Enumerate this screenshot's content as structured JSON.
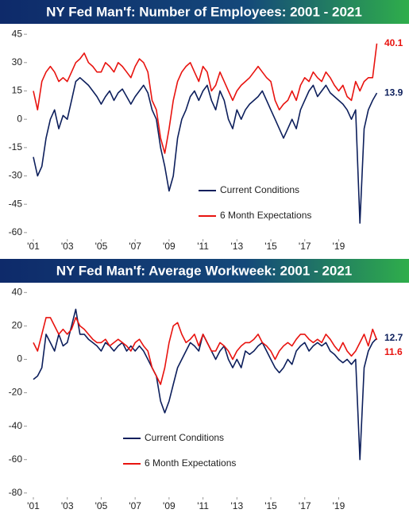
{
  "chart_data": [
    {
      "type": "line",
      "title": "NY Fed Man'f: Number of Employees: 2001 - 2021",
      "x": [
        2001,
        2001.25,
        2001.5,
        2001.75,
        2002,
        2002.25,
        2002.5,
        2002.75,
        2003,
        2003.25,
        2003.5,
        2003.75,
        2004,
        2004.25,
        2004.5,
        2004.75,
        2005,
        2005.25,
        2005.5,
        2005.75,
        2006,
        2006.25,
        2006.5,
        2006.75,
        2007,
        2007.25,
        2007.5,
        2007.75,
        2008,
        2008.25,
        2008.5,
        2008.75,
        2009,
        2009.25,
        2009.5,
        2009.75,
        2010,
        2010.25,
        2010.5,
        2010.75,
        2011,
        2011.25,
        2011.5,
        2011.75,
        2012,
        2012.25,
        2012.5,
        2012.75,
        2013,
        2013.25,
        2013.5,
        2013.75,
        2014,
        2014.25,
        2014.5,
        2014.75,
        2015,
        2015.25,
        2015.5,
        2015.75,
        2016,
        2016.25,
        2016.5,
        2016.75,
        2017,
        2017.25,
        2017.5,
        2017.75,
        2018,
        2018.25,
        2018.5,
        2018.75,
        2019,
        2019.25,
        2019.5,
        2019.75,
        2020,
        2020.25,
        2020.5,
        2020.75,
        2021,
        2021.25
      ],
      "series": [
        {
          "name": "Current Conditions",
          "color": "#0d1f5c",
          "values": [
            -20,
            -30,
            -25,
            -10,
            0,
            5,
            -5,
            2,
            0,
            10,
            20,
            22,
            20,
            18,
            15,
            12,
            8,
            12,
            15,
            10,
            14,
            16,
            12,
            8,
            12,
            15,
            18,
            14,
            5,
            0,
            -15,
            -25,
            -38,
            -30,
            -10,
            0,
            5,
            12,
            15,
            10,
            15,
            18,
            10,
            5,
            15,
            10,
            0,
            -5,
            5,
            0,
            5,
            8,
            10,
            12,
            15,
            10,
            5,
            0,
            -5,
            -10,
            -5,
            0,
            -5,
            5,
            10,
            15,
            18,
            12,
            15,
            18,
            14,
            12,
            10,
            8,
            5,
            0,
            5,
            -55,
            -5,
            5,
            10,
            13.9
          ]
        },
        {
          "name": "6 Month Expectations",
          "color": "#e8130f",
          "values": [
            15,
            5,
            20,
            25,
            28,
            25,
            20,
            22,
            20,
            25,
            30,
            32,
            35,
            30,
            28,
            25,
            25,
            30,
            28,
            25,
            30,
            28,
            25,
            22,
            28,
            32,
            30,
            25,
            10,
            5,
            -10,
            -18,
            -5,
            10,
            20,
            25,
            28,
            30,
            25,
            20,
            28,
            25,
            15,
            18,
            25,
            20,
            15,
            10,
            15,
            18,
            20,
            22,
            25,
            28,
            25,
            22,
            20,
            10,
            5,
            8,
            10,
            15,
            10,
            18,
            22,
            20,
            25,
            22,
            20,
            25,
            22,
            18,
            15,
            18,
            12,
            10,
            20,
            15,
            20,
            22,
            22,
            40.1
          ]
        }
      ],
      "xlim": [
        2001,
        2021.6
      ],
      "xticks": [
        {
          "value": 2001,
          "label": "'01"
        },
        {
          "value": 2003,
          "label": "'03"
        },
        {
          "value": 2005,
          "label": "'05"
        },
        {
          "value": 2007,
          "label": "'07"
        },
        {
          "value": 2009,
          "label": "'09"
        },
        {
          "value": 2011,
          "label": "'11"
        },
        {
          "value": 2013,
          "label": "'13"
        },
        {
          "value": 2015,
          "label": "'15"
        },
        {
          "value": 2017,
          "label": "'17"
        },
        {
          "value": 2019,
          "label": "'19"
        }
      ],
      "ylim": [
        -63,
        48
      ],
      "yticks": [
        45,
        30,
        15,
        0,
        -15,
        -30,
        -45,
        -60
      ]
    },
    {
      "type": "line",
      "title": "NY Fed Man'f: Average Workweek: 2001 - 2021",
      "x": [
        2001,
        2001.25,
        2001.5,
        2001.75,
        2002,
        2002.25,
        2002.5,
        2002.75,
        2003,
        2003.25,
        2003.5,
        2003.75,
        2004,
        2004.25,
        2004.5,
        2004.75,
        2005,
        2005.25,
        2005.5,
        2005.75,
        2006,
        2006.25,
        2006.5,
        2006.75,
        2007,
        2007.25,
        2007.5,
        2007.75,
        2008,
        2008.25,
        2008.5,
        2008.75,
        2009,
        2009.25,
        2009.5,
        2009.75,
        2010,
        2010.25,
        2010.5,
        2010.75,
        2011,
        2011.25,
        2011.5,
        2011.75,
        2012,
        2012.25,
        2012.5,
        2012.75,
        2013,
        2013.25,
        2013.5,
        2013.75,
        2014,
        2014.25,
        2014.5,
        2014.75,
        2015,
        2015.25,
        2015.5,
        2015.75,
        2016,
        2016.25,
        2016.5,
        2016.75,
        2017,
        2017.25,
        2017.5,
        2017.75,
        2018,
        2018.25,
        2018.5,
        2018.75,
        2019,
        2019.25,
        2019.5,
        2019.75,
        2020,
        2020.25,
        2020.5,
        2020.75,
        2021,
        2021.25
      ],
      "series": [
        {
          "name": "Current Conditions",
          "color": "#0d1f5c",
          "values": [
            -12,
            -10,
            -5,
            15,
            10,
            5,
            15,
            8,
            10,
            20,
            30,
            15,
            15,
            12,
            10,
            8,
            5,
            10,
            8,
            5,
            8,
            10,
            5,
            8,
            5,
            8,
            5,
            0,
            -5,
            -10,
            -25,
            -32,
            -25,
            -15,
            -5,
            0,
            5,
            10,
            8,
            5,
            15,
            10,
            5,
            0,
            5,
            8,
            0,
            -5,
            0,
            -5,
            5,
            3,
            5,
            8,
            10,
            5,
            0,
            -5,
            -8,
            -5,
            0,
            -3,
            5,
            8,
            10,
            5,
            8,
            10,
            8,
            10,
            5,
            3,
            0,
            -2,
            0,
            -3,
            0,
            -60,
            -5,
            5,
            10,
            12.7
          ]
        },
        {
          "name": "6 Month Expectations",
          "color": "#e8130f",
          "values": [
            10,
            5,
            15,
            25,
            25,
            20,
            15,
            18,
            15,
            18,
            25,
            20,
            18,
            15,
            12,
            10,
            10,
            12,
            8,
            10,
            12,
            10,
            8,
            5,
            10,
            12,
            8,
            5,
            -5,
            -10,
            -15,
            -5,
            10,
            20,
            22,
            15,
            10,
            12,
            15,
            8,
            15,
            10,
            5,
            5,
            10,
            8,
            5,
            0,
            5,
            8,
            10,
            10,
            12,
            15,
            10,
            8,
            5,
            0,
            5,
            8,
            10,
            8,
            12,
            15,
            15,
            12,
            10,
            12,
            10,
            15,
            12,
            8,
            5,
            10,
            5,
            2,
            5,
            10,
            15,
            8,
            18,
            11.6
          ]
        }
      ],
      "xlim": [
        2001,
        2021.6
      ],
      "xticks": [
        {
          "value": 2001,
          "label": "'01"
        },
        {
          "value": 2003,
          "label": "'03"
        },
        {
          "value": 2005,
          "label": "'05"
        },
        {
          "value": 2007,
          "label": "'07"
        },
        {
          "value": 2009,
          "label": "'09"
        },
        {
          "value": 2011,
          "label": "'11"
        },
        {
          "value": 2013,
          "label": "'13"
        },
        {
          "value": 2015,
          "label": "'15"
        },
        {
          "value": 2017,
          "label": "'17"
        },
        {
          "value": 2019,
          "label": "'19"
        }
      ],
      "ylim": [
        -82,
        43
      ],
      "yticks": [
        40,
        20,
        0,
        -20,
        -40,
        -60,
        -80
      ]
    }
  ]
}
